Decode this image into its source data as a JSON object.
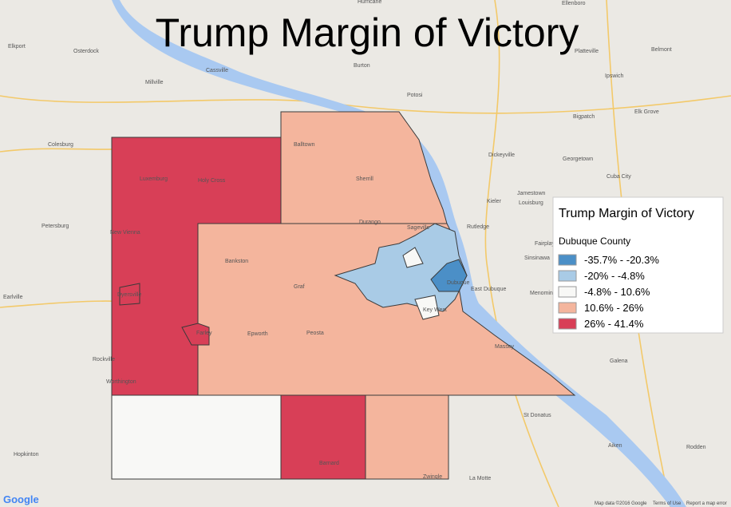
{
  "title": "Trump Margin of Victory",
  "legend": {
    "title": "Trump Margin of Victory",
    "subtitle": "Dubuque County",
    "items": [
      {
        "label": "-35.7% - -20.3%",
        "color": "#4b8fc7"
      },
      {
        "label": "-20% - -4.8%",
        "color": "#a9cbe6"
      },
      {
        "label": "-4.8% - 10.6%",
        "color": "#f8f8f6"
      },
      {
        "label": "10.6% - 26%",
        "color": "#f4b59d"
      },
      {
        "label": "26% - 41.4%",
        "color": "#d83f57"
      }
    ]
  },
  "places": [
    "Elkport",
    "Osterdock",
    "Millville",
    "Cassville",
    "Colesburg",
    "Potosi",
    "Petersburg",
    "Luxemburg",
    "Holy Cross",
    "New Vienna",
    "Balltown",
    "Sherrill",
    "Durango",
    "Sageville",
    "Rutledge",
    "Dickeyville",
    "Georgetown",
    "Cuba City",
    "Jamestown",
    "Kieler",
    "Louisburg",
    "Fairplay",
    "Sinsinawa",
    "Dubuque",
    "East Dubuque",
    "Menominee",
    "Bankston",
    "Epworth",
    "Peosta",
    "Graf",
    "Farley",
    "Dyersville",
    "Earlville",
    "Rockville",
    "Worthington",
    "Hopkinton",
    "Barnard",
    "Zwingle",
    "La Motte",
    "St Donatus",
    "Massey",
    "Galena",
    "Aiken",
    "Rodden",
    "Ellenboro",
    "Platteville",
    "Belmont",
    "Ipswich",
    "Bigpatch",
    "Elk Grove",
    "Hurricane",
    "Burton",
    "Key West"
  ],
  "footer": {
    "logo": "Google",
    "attribution": "Map data ©2016 Google",
    "terms": "Terms of Use",
    "report": "Report a map error"
  }
}
